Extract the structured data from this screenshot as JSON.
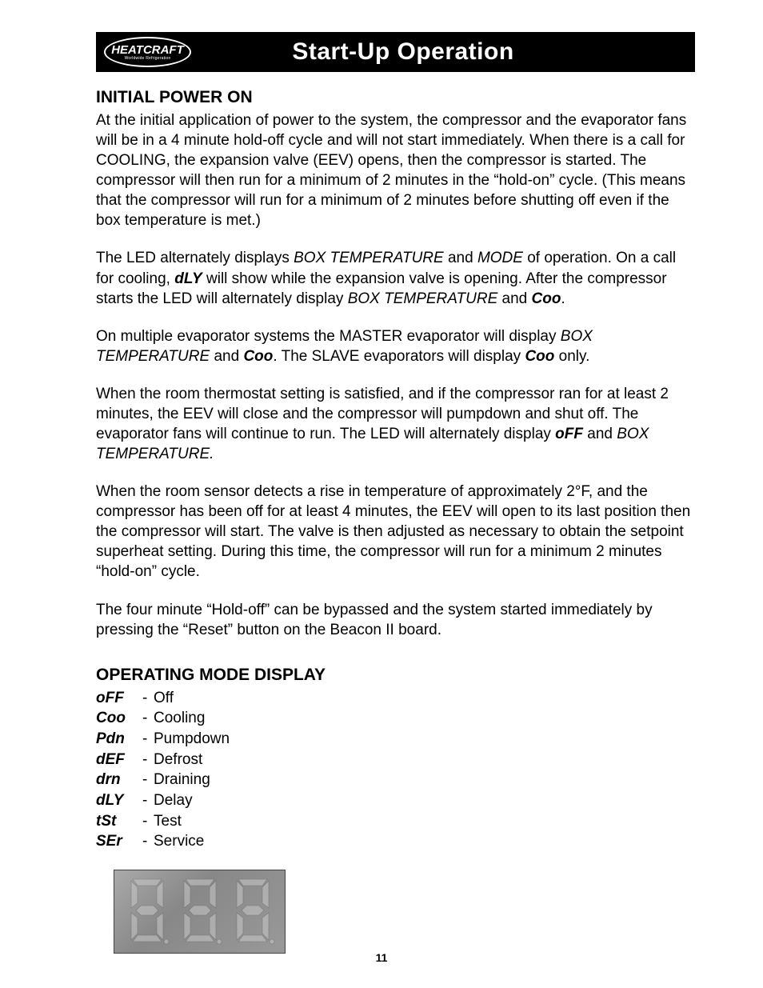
{
  "banner": {
    "logo_text": "HEATCRAFT",
    "logo_sub": "Worldwide Refrigeration",
    "title": "Start-Up Operation"
  },
  "section1": {
    "heading": "INITIAL POWER ON"
  },
  "p1": {
    "t": "At the initial application of power to the system, the compressor and the evaporator fans will be in a 4 minute hold-off cycle and will not start immediately.  When there is a call for COOLING, the expansion valve (EEV) opens, then the compressor is started.  The compressor will then run for a minimum of 2 minutes in the “hold-on” cycle. (This means that the compressor will run for a minimum of 2 minutes before shutting off even if the box temperature is met.)"
  },
  "p2": {
    "a": "The LED alternately displays ",
    "b": "BOX TEMPERATURE",
    "c": "  and ",
    "d": "MODE",
    "e": "  of operation. On a call for cooling, ",
    "f": "dLY",
    "g": " will show while the expansion valve is opening.  After the compressor starts the LED will alternately display ",
    "h": "BOX TEMPERATURE",
    "i": " and ",
    "j": "Coo",
    "k": "."
  },
  "p3": {
    "a": "On multiple evaporator systems the MASTER evaporator will display ",
    "b": "BOX TEMPERATURE",
    "c": " and ",
    "d": "Coo",
    "e": ". The SLAVE evaporators will display ",
    "f": "Coo",
    "g": "  only."
  },
  "p4": {
    "a": "When the room thermostat setting is satisfied, and if the compressor ran for at least 2 minutes, the EEV will close and the compressor will pumpdown and shut off.  The evaporator fans will continue to run. The LED will alternately display ",
    "b": "oFF",
    "c": "  and ",
    "d": "BOX TEMPERATURE."
  },
  "p5": {
    "t": "When the room sensor detects a rise in temperature of approximately 2°F, and the compressor has been off for at least 4 minutes, the EEV will open to its last position then the compressor will start.  The valve is then adjusted as necessary to obtain the setpoint superheat setting.  During this time, the compressor will run for a minimum 2 minutes “hold-on” cycle."
  },
  "p6": {
    "t": "The four minute “Hold-off” can be bypassed and the system started immediately by pressing the “Reset” button on the Beacon II board."
  },
  "section2": {
    "heading": "OPERATING MODE DISPLAY"
  },
  "modes": [
    {
      "code": "oFF",
      "dash": "-",
      "label": " Off"
    },
    {
      "code": "Coo",
      "dash": "-",
      "label": " Cooling"
    },
    {
      "code": "Pdn",
      "dash": "-",
      "label": " Pumpdown"
    },
    {
      "code": "dEF",
      "dash": "-",
      "label": " Defrost"
    },
    {
      "code": "drn",
      "dash": "-",
      "label": " Draining"
    },
    {
      "code": "dLY",
      "dash": "-",
      "label": " Delay"
    },
    {
      "code": "tSt",
      "dash": "-",
      "label": " Test"
    },
    {
      "code": "SEr",
      "dash": "-",
      "label": " Service"
    }
  ],
  "led": {
    "background": "#8f8f8f",
    "segment_color": "#c8c8c8",
    "segment_stroke": "#666666"
  },
  "page_number": "11"
}
